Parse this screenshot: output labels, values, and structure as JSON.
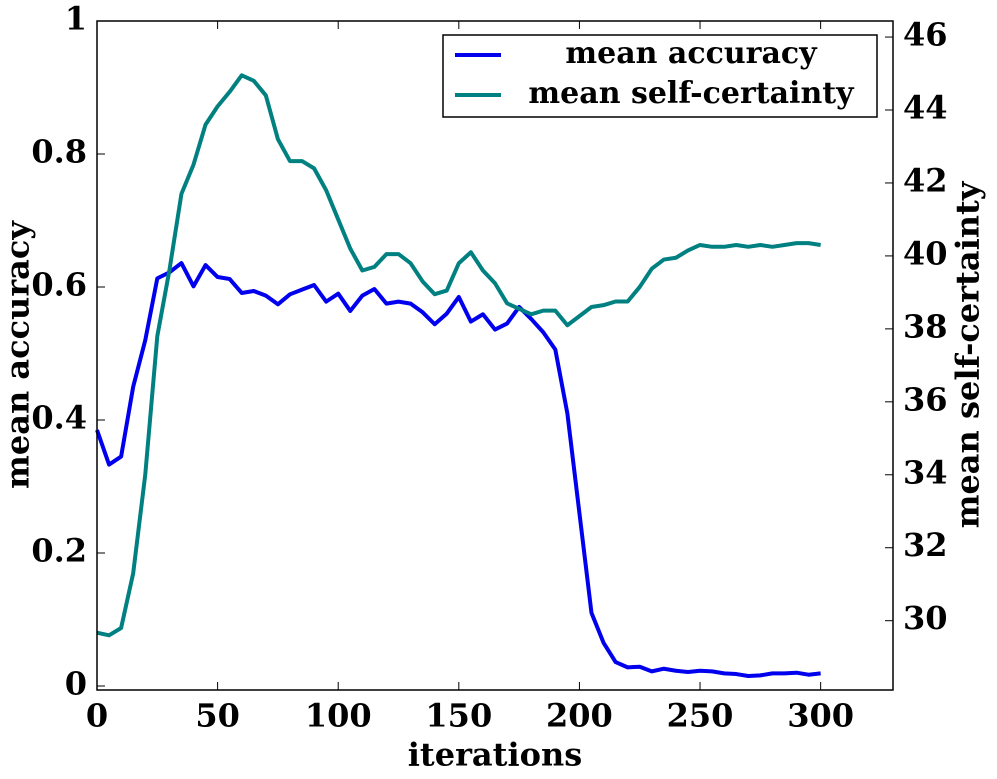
{
  "chart_data": {
    "type": "line",
    "xlabel": "iterations",
    "ylabel": "mean accuracy",
    "y2label": "mean self-certainty",
    "x": [
      0,
      5,
      10,
      15,
      20,
      25,
      30,
      35,
      40,
      45,
      50,
      55,
      60,
      65,
      70,
      75,
      80,
      85,
      90,
      95,
      100,
      105,
      110,
      115,
      120,
      125,
      130,
      135,
      140,
      145,
      150,
      155,
      160,
      165,
      170,
      175,
      180,
      185,
      190,
      195,
      200,
      205,
      210,
      215,
      220,
      225,
      230,
      235,
      240,
      245,
      250,
      255,
      260,
      265,
      270,
      275,
      280,
      285,
      290,
      295,
      300
    ],
    "series": [
      {
        "name": "mean accuracy",
        "color": "#0000ee",
        "axis": "y",
        "values": [
          0.385,
          0.333,
          0.345,
          0.45,
          0.52,
          0.613,
          0.622,
          0.636,
          0.601,
          0.633,
          0.615,
          0.612,
          0.591,
          0.594,
          0.587,
          0.574,
          0.589,
          0.596,
          0.603,
          0.578,
          0.59,
          0.564,
          0.587,
          0.597,
          0.575,
          0.578,
          0.575,
          0.562,
          0.544,
          0.56,
          0.585,
          0.548,
          0.559,
          0.536,
          0.545,
          0.57,
          0.552,
          0.532,
          0.506,
          0.41,
          0.26,
          0.11,
          0.065,
          0.036,
          0.028,
          0.029,
          0.022,
          0.026,
          0.023,
          0.021,
          0.023,
          0.022,
          0.019,
          0.018,
          0.015,
          0.016,
          0.019,
          0.019,
          0.02,
          0.017,
          0.019
        ]
      },
      {
        "name": "mean self-certainty",
        "color": "#008080",
        "axis": "y2",
        "values": [
          29.67,
          29.6,
          29.8,
          31.3,
          34,
          37.8,
          39.6,
          41.7,
          42.5,
          43.6,
          44.1,
          44.5,
          44.95,
          44.8,
          44.4,
          43.2,
          42.6,
          42.6,
          42.4,
          41.8,
          41,
          40.2,
          39.6,
          39.7,
          40.05,
          40.05,
          39.8,
          39.3,
          38.95,
          39.05,
          39.8,
          40.1,
          39.6,
          39.25,
          38.7,
          38.55,
          38.4,
          38.5,
          38.5,
          38.1,
          38.35,
          38.6,
          38.65,
          38.75,
          38.75,
          39.15,
          39.65,
          39.9,
          39.95,
          40.15,
          40.3,
          40.25,
          40.25,
          40.3,
          40.25,
          40.3,
          40.25,
          40.3,
          40.35,
          40.35,
          40.3
        ]
      }
    ],
    "xlim": [
      0,
      330
    ],
    "xticks": [
      0,
      50,
      100,
      150,
      200,
      250,
      300
    ],
    "ylim": [
      -0.006,
      1
    ],
    "yticks": [
      0,
      0.2,
      0.4,
      0.6,
      0.8,
      1
    ],
    "y2lim": [
      28.1,
      46.44
    ],
    "y2ticks": [
      30,
      32,
      34,
      36,
      38,
      40,
      42,
      44,
      46
    ],
    "legend": "top-right"
  }
}
